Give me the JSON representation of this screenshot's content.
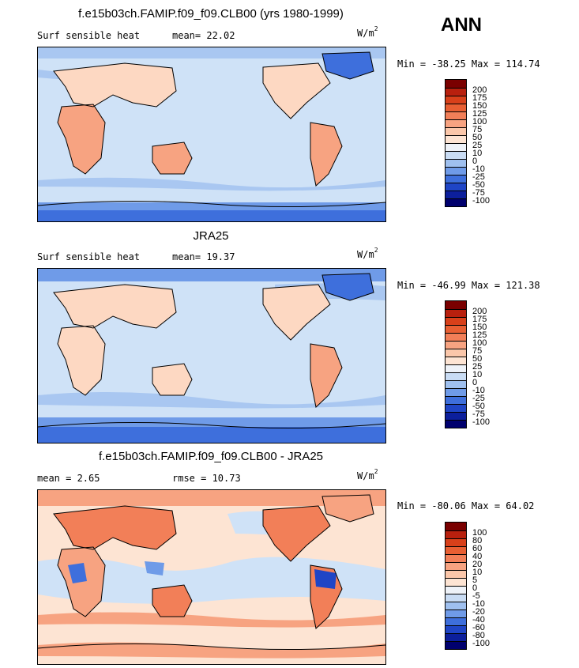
{
  "season": "ANN",
  "panels": [
    {
      "title": "f.e15b03ch.FAMIP.f09_f09.CLB00 (yrs 1980-1999)",
      "left_label": "Surf sensible heat",
      "stat1": "mean=  22.02",
      "stat2": "",
      "units": "W/m",
      "units_exp": "2",
      "minmax": "Min = -38.25 Max = 114.74",
      "legend": [
        "200",
        "175",
        "150",
        "125",
        "100",
        "75",
        "50",
        "25",
        "10",
        "0",
        "-10",
        "-25",
        "-50",
        "-75",
        "-100"
      ]
    },
    {
      "title": "JRA25",
      "left_label": "Surf sensible heat",
      "stat1": "mean=  19.37",
      "stat2": "",
      "units": "W/m",
      "units_exp": "2",
      "minmax": "Min = -46.99 Max = 121.38",
      "legend": [
        "200",
        "175",
        "150",
        "125",
        "100",
        "75",
        "50",
        "25",
        "10",
        "0",
        "-10",
        "-25",
        "-50",
        "-75",
        "-100"
      ]
    },
    {
      "title": "f.e15b03ch.FAMIP.f09_f09.CLB00 - JRA25",
      "left_label": "mean =   2.65",
      "stat1": "rmse =  10.73",
      "stat2": "",
      "units": "W/m",
      "units_exp": "2",
      "minmax": "Min = -80.06 Max =  64.02",
      "legend": [
        "100",
        "80",
        "60",
        "40",
        "20",
        "10",
        "5",
        "0",
        "-5",
        "-10",
        "-20",
        "-40",
        "-60",
        "-80",
        "-100"
      ]
    }
  ],
  "colors": {
    "scale": [
      "#7a0000",
      "#b8200e",
      "#d8401a",
      "#e85f33",
      "#f27f58",
      "#f7a381",
      "#fbc7aa",
      "#fde4d3",
      "#eef2f8",
      "#c9dcf4",
      "#9fc0ef",
      "#6f9be8",
      "#3e6fdc",
      "#1f45c6",
      "#0c1f9c",
      "#00006e"
    ],
    "ocean": "#cfe2f7",
    "warm": "#fdd8c2",
    "warm2": "#f7a381",
    "cool": "#a9c7f1",
    "cool2": "#6f9be8",
    "cool3": "#3e6fdc"
  }
}
